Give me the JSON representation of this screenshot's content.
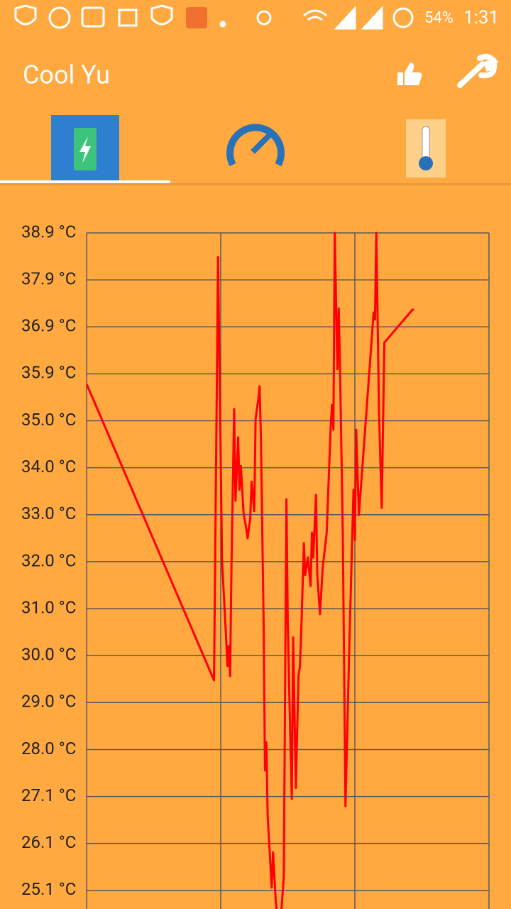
{
  "status_bar": {
    "battery": "54%",
    "time": "1:31"
  },
  "app_bar": {
    "title": "Cool Yu"
  },
  "chart_data": {
    "type": "line",
    "color": "#ff0000",
    "grid": true,
    "x": [
      0,
      0.95,
      0.98,
      1.01,
      1.04,
      1.05,
      1.06,
      1.07,
      1.08,
      1.1,
      1.11,
      1.13,
      1.14,
      1.15,
      1.17,
      1.19,
      1.2,
      1.22,
      1.23,
      1.25,
      1.26,
      1.28,
      1.29,
      1.3,
      1.32,
      1.33,
      1.34,
      1.35,
      1.38,
      1.39,
      1.41,
      1.42,
      1.45,
      1.47,
      1.49,
      1.5,
      1.52,
      1.53,
      1.54,
      1.56,
      1.58,
      1.59,
      1.6,
      1.62,
      1.63,
      1.65,
      1.67,
      1.68,
      1.69,
      1.71,
      1.72,
      1.74,
      1.76,
      1.79,
      1.82,
      1.83,
      1.84,
      1.85,
      1.87,
      1.88,
      1.89,
      1.91,
      1.93,
      1.96,
      1.99,
      2.0,
      2.01,
      2.03,
      2.14,
      2.15,
      2.16,
      2.18,
      2.2,
      2.22,
      2.43,
      2.44
    ],
    "values": [
      35.73,
      29.51,
      38.39,
      32.01,
      30.41,
      29.81,
      30.23,
      29.6,
      31.87,
      35.2,
      33.28,
      34.61,
      33.51,
      34.01,
      33.03,
      32.7,
      32.49,
      32.91,
      33.68,
      33.06,
      35.0,
      35.41,
      35.68,
      34.55,
      30.67,
      27.62,
      28.21,
      26.65,
      25.16,
      25.9,
      24.89,
      24.6,
      24.6,
      25.38,
      33.31,
      30.67,
      28.14,
      27.02,
      30.41,
      27.25,
      29.63,
      29.78,
      30.52,
      32.39,
      31.72,
      32.09,
      31.49,
      32.61,
      32.09,
      33.4,
      31.72,
      30.9,
      31.87,
      32.61,
      34.85,
      35.29,
      34.77,
      38.9,
      36.04,
      37.31,
      35.96,
      32.61,
      26.87,
      30.38,
      33.51,
      32.46,
      34.77,
      32.98,
      37.23,
      37.08,
      38.9,
      35.14,
      33.13,
      36.6,
      37.29,
      37.29
    ],
    "xlim": [
      0,
      3
    ],
    "xticks": [
      0,
      1,
      2,
      3
    ],
    "ylim": [
      24.71,
      38.9
    ],
    "yticks": [
      {
        "value": 38.9,
        "label": "38.9 °C"
      },
      {
        "value": 37.914,
        "label": "37.9 °C"
      },
      {
        "value": 36.929,
        "label": "36.9 °C"
      },
      {
        "value": 35.943,
        "label": "35.9 °C"
      },
      {
        "value": 34.957,
        "label": "35.0 °C"
      },
      {
        "value": 33.971,
        "label": "34.0 °C"
      },
      {
        "value": 32.986,
        "label": "33.0 °C"
      },
      {
        "value": 32.0,
        "label": "32.0 °C"
      },
      {
        "value": 31.014,
        "label": "31.0 °C"
      },
      {
        "value": 30.029,
        "label": "30.0 °C"
      },
      {
        "value": 29.043,
        "label": "29.0 °C"
      },
      {
        "value": 28.057,
        "label": "28.0 °C"
      },
      {
        "value": 27.071,
        "label": "27.1 °C"
      },
      {
        "value": 26.086,
        "label": "26.1 °C"
      },
      {
        "value": 25.1,
        "label": "25.1 °C"
      }
    ]
  }
}
